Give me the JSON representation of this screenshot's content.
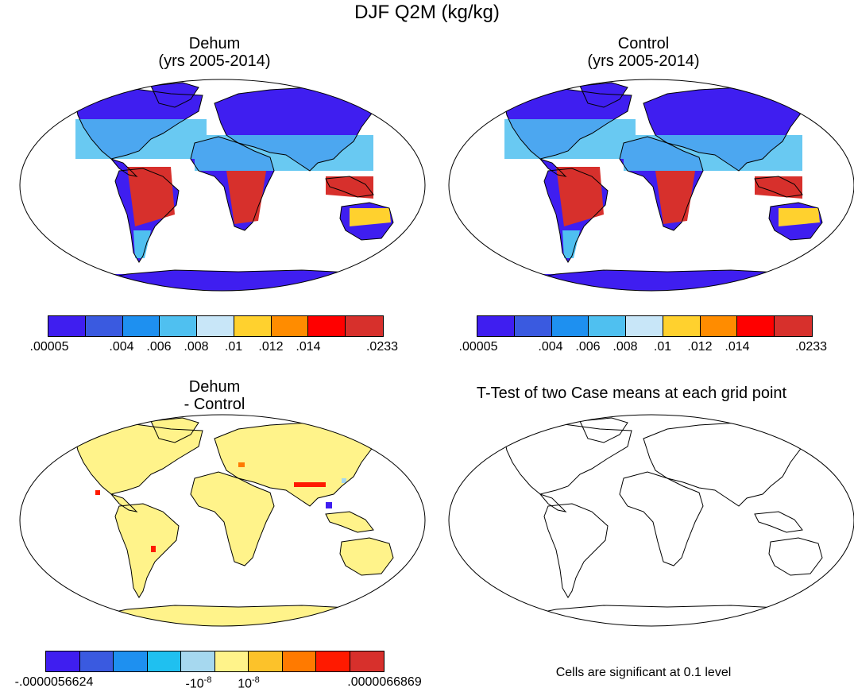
{
  "figure": {
    "title": "DJF Q2M (kg/kg)"
  },
  "panels": [
    {
      "id": "dehum",
      "title_line1": "Dehum",
      "title_line2": "(yrs 2005-2014)",
      "field": "absolute",
      "colorbar": {
        "colors": [
          "#3f1ef0",
          "#3a5ae0",
          "#1e90f0",
          "#4fc0f0",
          "#c8e6f8",
          "#ffd12e",
          "#ff8c00",
          "#ff0000",
          "#d7302c"
        ],
        "labels": [
          ".00005",
          ".004",
          ".006",
          ".008",
          ".01",
          ".012",
          ".014",
          ".0233"
        ]
      }
    },
    {
      "id": "control",
      "title_line1": "Control",
      "title_line2": "(yrs 2005-2014)",
      "field": "absolute",
      "colorbar": {
        "colors": [
          "#3f1ef0",
          "#3a5ae0",
          "#1e90f0",
          "#4fc0f0",
          "#c8e6f8",
          "#ffd12e",
          "#ff8c00",
          "#ff0000",
          "#d7302c"
        ],
        "labels": [
          ".00005",
          ".004",
          ".006",
          ".008",
          ".01",
          ".012",
          ".014",
          ".0233"
        ]
      }
    },
    {
      "id": "diff",
      "title_line1": "Dehum",
      "title_line2": "- Control",
      "field": "difference",
      "colorbar": {
        "colors": [
          "#3f1ef0",
          "#3a5ae0",
          "#1e90f0",
          "#1fc0f0",
          "#a6d8ef",
          "#fff38a",
          "#fcc22a",
          "#ff7a00",
          "#ff1a00",
          "#d7302c"
        ],
        "labels": [
          "-.0000056624",
          "-10",
          "10",
          ".0000066869"
        ],
        "exponent": "-8"
      }
    },
    {
      "id": "ttest",
      "title_line1": "T-Test of two Case means at each grid point",
      "title_line2": "",
      "field": "outline",
      "note": "Cells are significant at 0.1 level"
    }
  ],
  "legend_colors": {
    "dehum_ocean": "#ffffff",
    "diff_land": "#fff38a",
    "outline": "#000000"
  }
}
